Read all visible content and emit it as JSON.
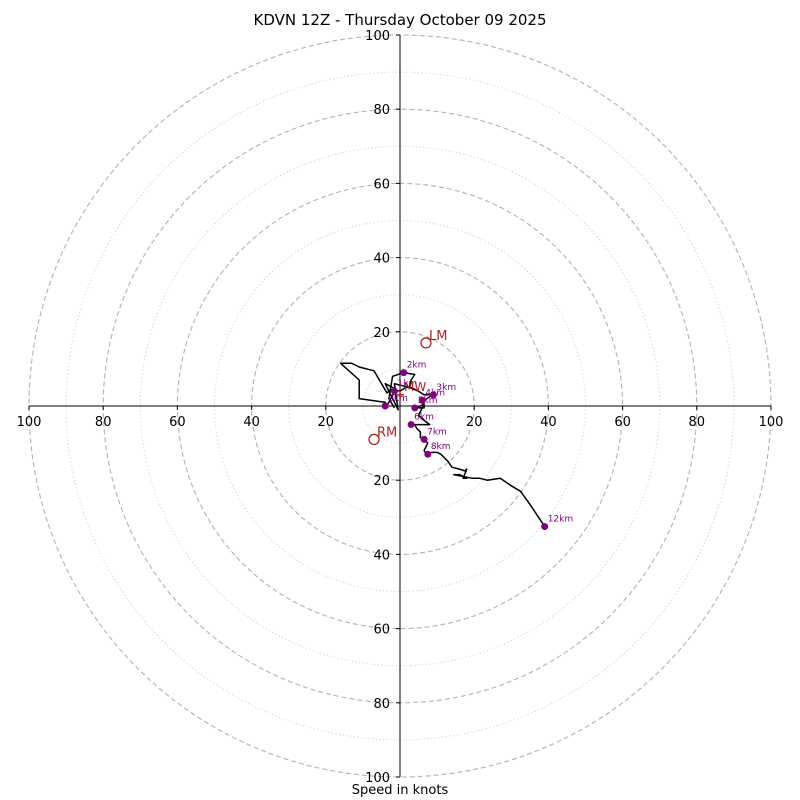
{
  "chart_data": {
    "type": "hodograph",
    "title": "KDVN 12Z - Thursday October 09 2025",
    "xlabel": "Speed in knots",
    "units": "knots",
    "range": [
      -100,
      100
    ],
    "ring_ticks_x": [
      100,
      80,
      60,
      40,
      20,
      20,
      40,
      60,
      80,
      100
    ],
    "ring_ticks_y": [
      100,
      80,
      60,
      40,
      20,
      20,
      40,
      60,
      80,
      100
    ],
    "ring_dashed": [
      20,
      40,
      60,
      80,
      100
    ],
    "ring_dotted": [
      10,
      30,
      50,
      70,
      90
    ],
    "hodograph_trace": [
      [
        -1.5,
        -0.5
      ],
      [
        -3,
        2
      ],
      [
        -2.5,
        5
      ],
      [
        -2,
        8
      ],
      [
        1,
        9
      ],
      [
        4,
        8.5
      ],
      [
        3,
        7
      ],
      [
        2.5,
        5
      ],
      [
        4,
        4.5
      ],
      [
        3,
        5
      ],
      [
        2.5,
        5
      ],
      [
        1.5,
        5
      ],
      [
        0,
        4
      ],
      [
        -2.5,
        4.5
      ],
      [
        -3.5,
        3.5
      ],
      [
        -7,
        9.5
      ],
      [
        -11,
        10.5
      ],
      [
        -13,
        11.5
      ],
      [
        -16,
        11.5
      ],
      [
        -11,
        7
      ],
      [
        -11,
        2
      ],
      [
        -4,
        1
      ],
      [
        -3.5,
        0
      ],
      [
        -2.5,
        2
      ],
      [
        -1,
        4.5
      ],
      [
        -4,
        6
      ],
      [
        -0.5,
        -1
      ],
      [
        -1.5,
        6
      ],
      [
        2.5,
        5
      ],
      [
        5,
        4
      ],
      [
        6.5,
        3
      ],
      [
        7.5,
        3
      ],
      [
        9,
        3.5
      ],
      [
        8,
        2.5
      ],
      [
        6.5,
        1.5
      ],
      [
        5.5,
        1.5
      ],
      [
        6.5,
        0.5
      ],
      [
        6.5,
        -0.5
      ],
      [
        4,
        -0.5
      ],
      [
        4.5,
        -0.5
      ],
      [
        5.5,
        0
      ],
      [
        6.5,
        0.5
      ],
      [
        5.5,
        -1.5
      ],
      [
        5,
        -2.5
      ],
      [
        6,
        -3.5
      ],
      [
        8,
        -5
      ],
      [
        6.5,
        -5
      ],
      [
        4,
        -5
      ],
      [
        4.5,
        -6
      ],
      [
        5.5,
        -7
      ],
      [
        5.5,
        -8.5
      ],
      [
        6.5,
        -9
      ],
      [
        7.5,
        -10
      ],
      [
        6.5,
        -12
      ],
      [
        7.5,
        -13.5
      ],
      [
        7.5,
        -13
      ],
      [
        8.5,
        -12.5
      ],
      [
        10,
        -12.5
      ],
      [
        11,
        -13
      ],
      [
        12,
        -14
      ],
      [
        13,
        -15
      ],
      [
        14,
        -16.5
      ],
      [
        16,
        -17
      ],
      [
        17.5,
        -17.5
      ],
      [
        18,
        -17
      ],
      [
        17,
        -19.5
      ],
      [
        18,
        -19.5
      ],
      [
        16,
        -18.5
      ],
      [
        14.5,
        -18.5
      ],
      [
        19.5,
        -19.5
      ],
      [
        21.5,
        -19.5
      ],
      [
        23.5,
        -20
      ],
      [
        27,
        -19.5
      ],
      [
        30,
        -21.5
      ],
      [
        32.5,
        -23
      ],
      [
        35,
        -26.5
      ],
      [
        37,
        -29.5
      ],
      [
        39,
        -32.5
      ]
    ],
    "height_points": [
      {
        "label": "0km",
        "u": -4,
        "v": 0
      },
      {
        "label": "1km",
        "u": -1.5,
        "v": 4
      },
      {
        "label": "2km",
        "u": 1,
        "v": 9
      },
      {
        "label": "3km",
        "u": 9,
        "v": 3
      },
      {
        "label": "4km",
        "u": 6,
        "v": 1.5
      },
      {
        "label": "5km",
        "u": 4,
        "v": -0.5
      },
      {
        "label": "6km",
        "u": 3,
        "v": -5
      },
      {
        "label": "7km",
        "u": 6.5,
        "v": -9
      },
      {
        "label": "8km",
        "u": 7.5,
        "v": -13
      },
      {
        "label": "12km",
        "u": 39,
        "v": -32.5
      }
    ],
    "storm_motions": [
      {
        "label": "LM",
        "u": 7,
        "v": 17
      },
      {
        "label": "RM",
        "u": -7,
        "v": -9
      },
      {
        "label": "MW",
        "u": 0,
        "v": 3
      }
    ],
    "colors": {
      "trace": "#000000",
      "height_points": "#800080",
      "storm_motion": "#b22222",
      "rings": "#b3b3b3",
      "axes": "#000000"
    }
  }
}
